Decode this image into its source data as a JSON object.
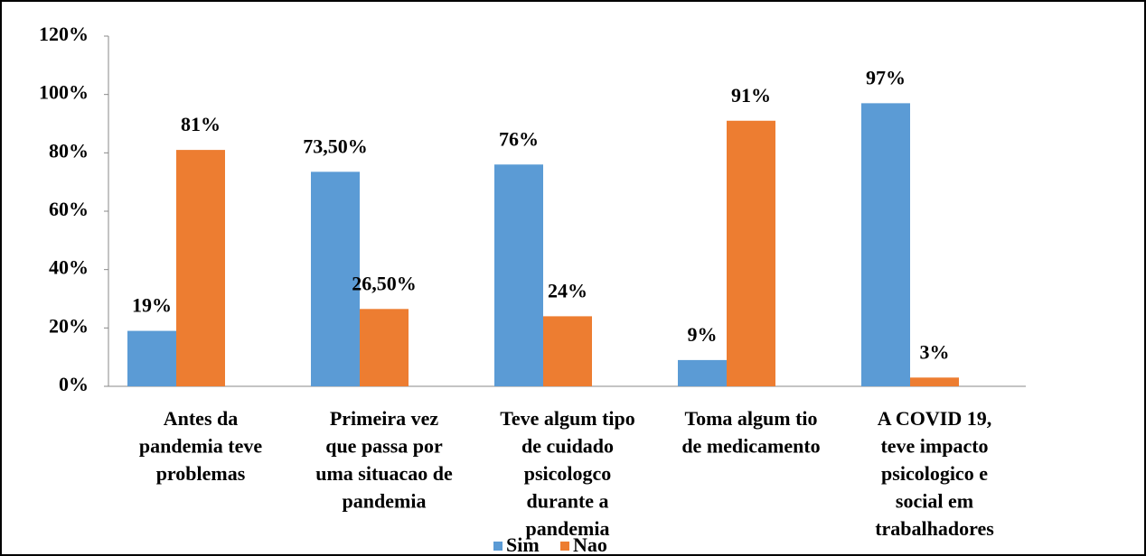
{
  "chart_data": {
    "type": "bar",
    "categories": [
      [
        "Antes da",
        "pandemia teve",
        "problemas"
      ],
      [
        "Primeira vez",
        "que passa por",
        "uma situacao de",
        "pandemia"
      ],
      [
        "Teve algum tipo",
        "de cuidado",
        "psicologco",
        "durante a",
        "pandemia"
      ],
      [
        "Toma algum tio",
        "de medicamento"
      ],
      [
        "A COVID 19,",
        "teve impacto",
        "psicologico e",
        "social em",
        "trabalhadores"
      ]
    ],
    "series": [
      {
        "name": "Sim",
        "color": "#5b9bd5",
        "values": [
          19,
          73.5,
          76,
          9,
          97
        ],
        "value_labels": [
          "19%",
          "73,50%",
          "76%",
          "9%",
          "97%"
        ]
      },
      {
        "name": "Nao",
        "color": "#ed7d31",
        "values": [
          81,
          26.5,
          24,
          91,
          3
        ],
        "value_labels": [
          "81%",
          "26,50%",
          "24%",
          "91%",
          "3%"
        ]
      }
    ],
    "ylim": [
      0,
      120
    ],
    "yticks": [
      {
        "value": 0,
        "label": "0%"
      },
      {
        "value": 20,
        "label": "20%"
      },
      {
        "value": 40,
        "label": "40%"
      },
      {
        "value": 60,
        "label": "60%"
      },
      {
        "value": 80,
        "label": "80%"
      },
      {
        "value": 100,
        "label": "100%"
      },
      {
        "value": 120,
        "label": "120%"
      }
    ],
    "grid": false
  }
}
